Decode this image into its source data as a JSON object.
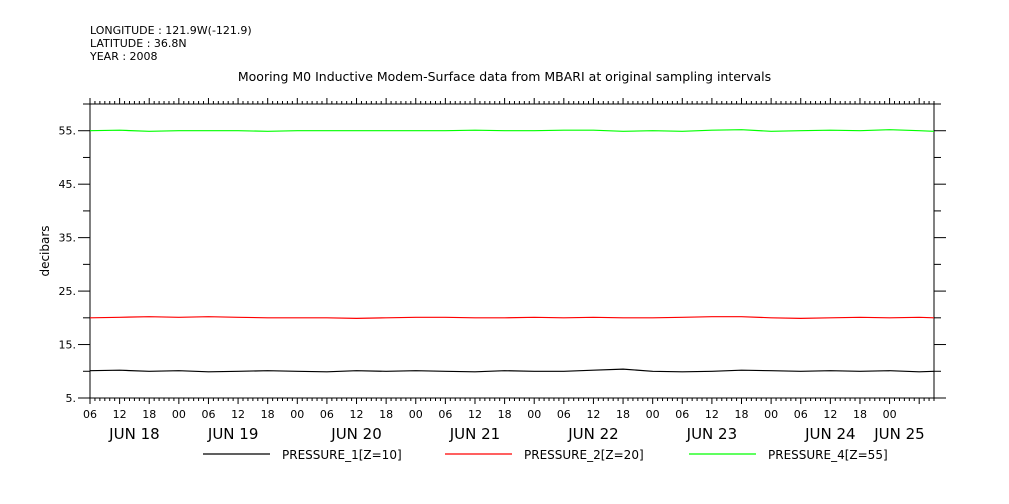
{
  "header": {
    "longitude": "LONGITUDE : 121.9W(-121.9)",
    "latitude": "LATITUDE : 36.8N",
    "year": "YEAR : 2008"
  },
  "chart_data": {
    "type": "line",
    "title": "Mooring M0 Inductive Modem-Surface data from MBARI at original sampling intervals",
    "xlabel": "",
    "ylabel": "decibars",
    "ylim": [
      5,
      60
    ],
    "y_ticks": [
      "5.",
      "15.",
      "25.",
      "35.",
      "45.",
      "55."
    ],
    "y_tick_values": [
      5,
      15,
      25,
      35,
      45,
      55
    ],
    "xlim_hours": [
      0,
      171
    ],
    "x_hour_ticks": [
      "06",
      "12",
      "18",
      "00",
      "06",
      "12",
      "18",
      "00",
      "06",
      "12",
      "18",
      "00",
      "06",
      "12",
      "18",
      "00",
      "06",
      "12",
      "18",
      "00",
      "06",
      "12",
      "18",
      "00",
      "06",
      "12",
      "18",
      "00"
    ],
    "x_day_labels": [
      "JUN 18",
      "JUN 19",
      "JUN 20",
      "JUN 21",
      "JUN 22",
      "JUN 23",
      "JUN 24",
      "JUN 25"
    ],
    "x_day_label_hours": [
      9,
      29,
      54,
      78,
      102,
      126,
      150,
      164
    ],
    "grid": false,
    "legend_position": "bottom",
    "series": [
      {
        "name": "PRESSURE_1[Z=10]",
        "color": "#000000",
        "x_hours": [
          0,
          6,
          12,
          18,
          24,
          30,
          36,
          42,
          48,
          54,
          60,
          66,
          72,
          78,
          84,
          90,
          96,
          102,
          108,
          114,
          120,
          126,
          132,
          138,
          144,
          150,
          156,
          162,
          168,
          171
        ],
        "values": [
          10.1,
          10.2,
          10.0,
          10.1,
          9.9,
          10.0,
          10.1,
          10.0,
          9.9,
          10.1,
          10.0,
          10.1,
          10.0,
          9.9,
          10.1,
          10.0,
          10.0,
          10.2,
          10.4,
          10.0,
          9.9,
          10.0,
          10.2,
          10.1,
          10.0,
          10.1,
          10.0,
          10.1,
          9.9,
          10.0
        ]
      },
      {
        "name": "PRESSURE_2[Z=20]",
        "color": "#ff0000",
        "x_hours": [
          0,
          6,
          12,
          18,
          24,
          30,
          36,
          42,
          48,
          54,
          60,
          66,
          72,
          78,
          84,
          90,
          96,
          102,
          108,
          114,
          120,
          126,
          132,
          138,
          144,
          150,
          156,
          162,
          168,
          171
        ],
        "values": [
          20.0,
          20.1,
          20.2,
          20.1,
          20.2,
          20.1,
          20.0,
          20.0,
          20.0,
          19.9,
          20.0,
          20.1,
          20.1,
          20.0,
          20.0,
          20.1,
          20.0,
          20.1,
          20.0,
          20.0,
          20.1,
          20.2,
          20.2,
          20.0,
          19.9,
          20.0,
          20.1,
          20.0,
          20.1,
          20.0
        ]
      },
      {
        "name": "PRESSURE_4[Z=55]",
        "color": "#00ff00",
        "x_hours": [
          0,
          6,
          12,
          18,
          24,
          30,
          36,
          42,
          48,
          54,
          60,
          66,
          72,
          78,
          84,
          90,
          96,
          102,
          108,
          114,
          120,
          126,
          132,
          138,
          144,
          150,
          156,
          162,
          168,
          171
        ],
        "values": [
          55.0,
          55.1,
          54.9,
          55.0,
          55.0,
          55.0,
          54.9,
          55.0,
          55.0,
          55.0,
          55.0,
          55.0,
          55.0,
          55.1,
          55.0,
          55.0,
          55.1,
          55.1,
          54.9,
          55.0,
          54.9,
          55.1,
          55.2,
          54.9,
          55.0,
          55.1,
          55.0,
          55.2,
          55.0,
          54.9
        ]
      }
    ]
  }
}
